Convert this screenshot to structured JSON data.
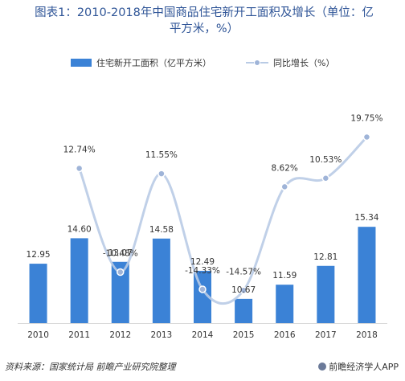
{
  "title_line1": "图表1：2010-2018年中国商品住宅新开工面积及增长（单位：亿",
  "title_line2": "平方米，%）",
  "source": "资料来源：国家统计局 前瞻产业研究院整理",
  "brand": "前瞻经济学人APP",
  "colors": {
    "bar": "#3b82d6",
    "line": "#b9cbe5",
    "marker": "#9fb4d8",
    "title": "#2f5597"
  },
  "chart_data": {
    "type": "bar",
    "categories": [
      "2010",
      "2011",
      "2012",
      "2013",
      "2014",
      "2015",
      "2016",
      "2017",
      "2018"
    ],
    "series": [
      {
        "name": "住宅新开工面积（亿平方米）",
        "type": "bar",
        "values": [
          12.95,
          14.6,
          13.07,
          14.58,
          12.49,
          10.67,
          11.59,
          12.81,
          15.34
        ],
        "labels": [
          "12.95",
          "14.60",
          "13.07",
          "14.58",
          "12.49",
          "10.67",
          "11.59",
          "12.81",
          "15.34"
        ]
      },
      {
        "name": "同比增长（%）",
        "type": "line",
        "smooth": true,
        "values": [
          null,
          12.74,
          -10.48,
          11.55,
          -14.33,
          -14.57,
          8.62,
          10.53,
          19.75
        ],
        "labels": [
          "",
          "12.74%",
          "-10.48%",
          "11.55%",
          "-14.33%",
          "-14.57%",
          "8.62%",
          "10.53%",
          "19.75%"
        ]
      }
    ],
    "legend": "top-center"
  }
}
